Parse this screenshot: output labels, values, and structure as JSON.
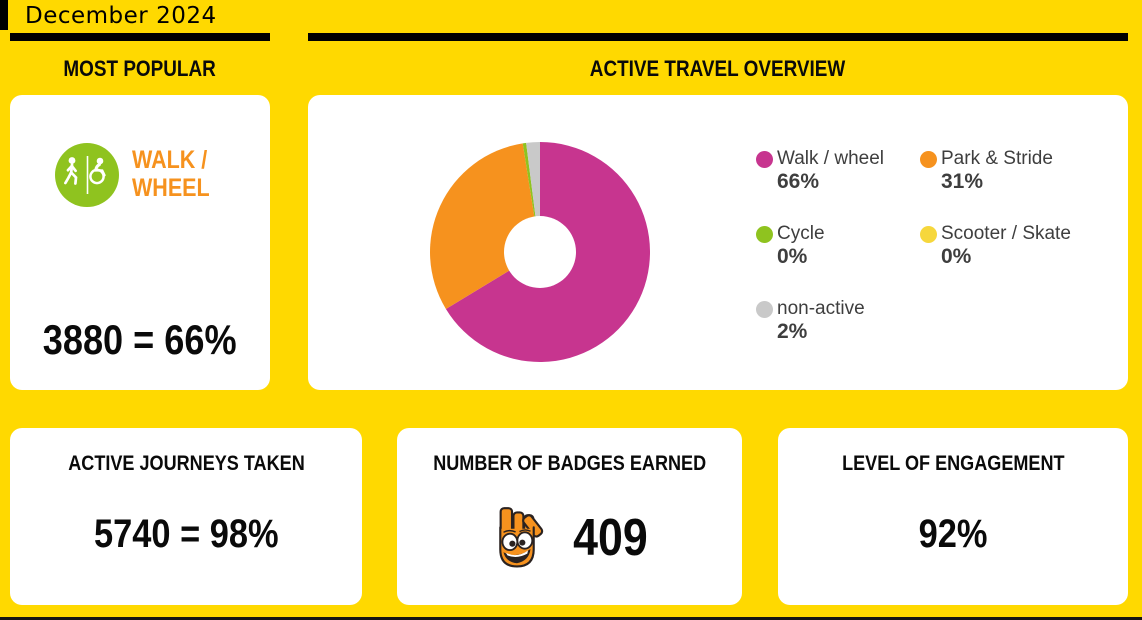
{
  "page": {
    "title": "December 2024"
  },
  "colors": {
    "background": "#FFD900",
    "card": "#FFFFFF",
    "ink": "#0A0A0A",
    "orange": "#F6921E",
    "pink": "#C7358F",
    "green": "#8FC31F",
    "yellow_dot": "#F6D73C",
    "gray": "#C9C9C9",
    "legend_text": "#3E3E3E"
  },
  "most_popular": {
    "section_title": "MOST POPULAR",
    "icon": "walk-wheelchair-icon",
    "mode_line1": "WALK /",
    "mode_line2": "WHEEL",
    "stat": "3880 = 66%"
  },
  "chart_data": {
    "type": "pie",
    "subtype": "donut",
    "title": "ACTIVE TRAVEL OVERVIEW",
    "unit": "percent",
    "start_angle_deg": -90,
    "direction": "clockwise",
    "donut_hole_ratio": 0.33,
    "legend_position": "right",
    "segments": [
      {
        "label": "Walk / wheel",
        "percent_label": "66%",
        "percent": 66,
        "arc_percent": 66,
        "color": "#C7358F"
      },
      {
        "label": "Park & Stride",
        "percent_label": "31%",
        "percent": 31,
        "arc_percent": 31,
        "color": "#F6921E"
      },
      {
        "label": "Cycle",
        "percent_label": "0%",
        "percent": 0,
        "arc_percent": 0.5,
        "color": "#8FC31F"
      },
      {
        "label": "Scooter / Skate",
        "percent_label": "0%",
        "percent": 0,
        "arc_percent": 0,
        "color": "#F6D73C"
      },
      {
        "label": "non-active",
        "percent_label": "2%",
        "percent": 2,
        "arc_percent": 2,
        "color": "#C9C9C9"
      }
    ]
  },
  "stats": {
    "journeys": {
      "title": "ACTIVE JOURNEYS TAKEN",
      "value": "5740 = 98%"
    },
    "badges": {
      "title": "NUMBER OF BADGES EARNED",
      "value": "409",
      "icon": "strider-hand-mascot-icon"
    },
    "engagement": {
      "title": "LEVEL OF ENGAGEMENT",
      "value": "92%"
    }
  }
}
